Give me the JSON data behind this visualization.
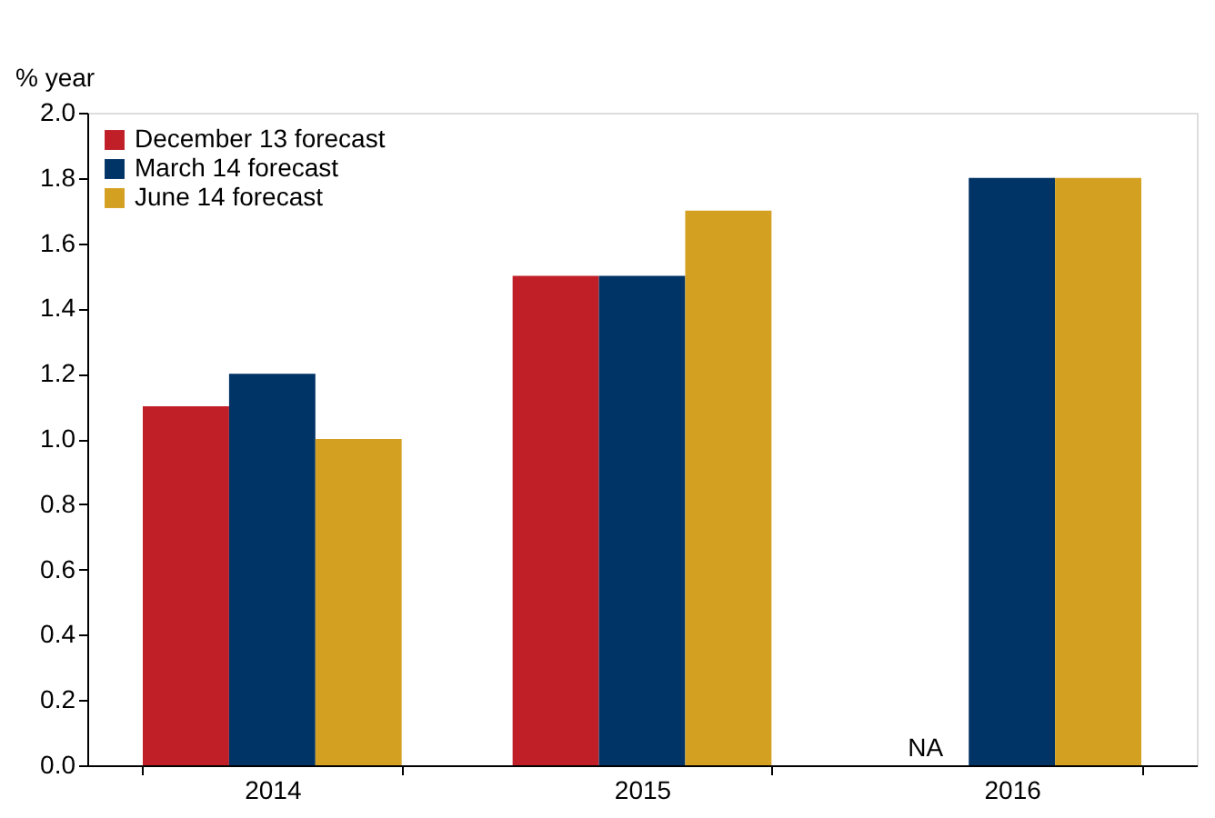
{
  "chart_data": {
    "type": "bar",
    "ylabel": "% year",
    "categories": [
      "2014",
      "2015",
      "2016"
    ],
    "series": [
      {
        "name": "December 13 forecast",
        "color": "#c01f28",
        "values": [
          1.1,
          1.5,
          null
        ]
      },
      {
        "name": "March 14 forecast",
        "color": "#003366",
        "values": [
          1.2,
          1.5,
          1.8
        ]
      },
      {
        "name": "June 14 forecast",
        "color": "#d4a021",
        "values": [
          1.0,
          1.7,
          1.8
        ]
      }
    ],
    "ylim": [
      0,
      2.0
    ],
    "yticks": [
      {
        "value": 0,
        "label": "0.0"
      },
      {
        "value": 0.2,
        "label": "0.2"
      },
      {
        "value": 0.4,
        "label": "0.4"
      },
      {
        "value": 0.6,
        "label": "0.6"
      },
      {
        "value": 0.8,
        "label": "0.8"
      },
      {
        "value": 1.0,
        "label": "1.0"
      },
      {
        "value": 1.2,
        "label": "1.2"
      },
      {
        "value": 1.4,
        "label": "1.4"
      },
      {
        "value": 1.6,
        "label": "1.6"
      },
      {
        "value": 1.8,
        "label": "1.8"
      },
      {
        "value": 2.0,
        "label": "2.0"
      }
    ],
    "annotations": [
      {
        "text": "NA",
        "x": "2016",
        "y": 0
      }
    ],
    "grid": false,
    "legend": "top left"
  }
}
